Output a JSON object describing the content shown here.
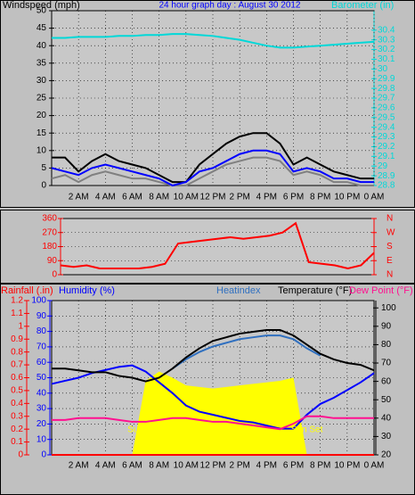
{
  "chart_data": [
    {
      "type": "line",
      "title": "24 hour graph day : August 30 2012",
      "ylabel": "Windspeed (mph)",
      "ycolor": "#000000",
      "y2label": "Barometer (in)",
      "y2color": "#00d8d8",
      "xlim": [
        0,
        24
      ],
      "xticks": [
        {
          "value": 2,
          "label": "2 AM"
        },
        {
          "value": 4,
          "label": "4 AM"
        },
        {
          "value": 6,
          "label": "6 AM"
        },
        {
          "value": 8,
          "label": "8 AM"
        },
        {
          "value": 10,
          "label": "10 AM"
        },
        {
          "value": 12,
          "label": "12 PM"
        },
        {
          "value": 14,
          "label": "2 PM"
        },
        {
          "value": 16,
          "label": "4 PM"
        },
        {
          "value": 18,
          "label": "6 PM"
        },
        {
          "value": 20,
          "label": "8 PM"
        },
        {
          "value": 22,
          "label": "10 PM"
        },
        {
          "value": 24,
          "label": "0 AM"
        }
      ],
      "ylim": [
        0,
        50
      ],
      "yticks": [
        0,
        5,
        10,
        15,
        20,
        25,
        30,
        35,
        40,
        45,
        50
      ],
      "y2lim": [
        28.8,
        30.6
      ],
      "y2ticks": [
        28.8,
        28.9,
        29,
        29.1,
        29.2,
        29.3,
        29.4,
        29.5,
        29.6,
        29.7,
        29.8,
        29.9,
        30,
        30.1,
        30.2,
        30.3,
        30.4
      ],
      "grid": true,
      "x": [
        0,
        1,
        2,
        3,
        4,
        5,
        6,
        7,
        8,
        9,
        10,
        11,
        12,
        13,
        14,
        15,
        16,
        17,
        18,
        19,
        20,
        21,
        22,
        23,
        24
      ],
      "series": [
        {
          "color": "#808080",
          "values": [
            2,
            3,
            1,
            3,
            4,
            3,
            2,
            2,
            1,
            0,
            0,
            2,
            4,
            6,
            7,
            8,
            8,
            7,
            3,
            4,
            3,
            1,
            1,
            0,
            0
          ]
        },
        {
          "color": "#000000",
          "values": [
            8,
            8,
            4,
            7,
            9,
            7,
            6,
            5,
            3,
            1,
            1,
            6,
            9,
            12,
            14,
            15,
            15,
            12,
            6,
            8,
            6,
            4,
            3,
            2,
            2
          ]
        },
        {
          "color": "#0000ff",
          "values": [
            5,
            4,
            3,
            5,
            6,
            5,
            4,
            3,
            2,
            0,
            1,
            4,
            5,
            7,
            9,
            10,
            10,
            9,
            4,
            5,
            4,
            2,
            2,
            1,
            1
          ]
        },
        {
          "color": "#00d8d8",
          "axis": "y2",
          "values": [
            30.32,
            30.32,
            30.33,
            30.33,
            30.33,
            30.34,
            30.34,
            30.35,
            30.35,
            30.36,
            30.36,
            30.35,
            30.34,
            30.32,
            30.3,
            30.27,
            30.24,
            30.22,
            30.22,
            30.23,
            30.24,
            30.25,
            30.26,
            30.27,
            30.28
          ]
        }
      ]
    },
    {
      "type": "line",
      "ycolor": "#ff0000",
      "y2color": "#ff0000",
      "xlim": [
        0,
        24
      ],
      "ylim": [
        0,
        360
      ],
      "yticks": [
        0,
        90,
        180,
        270,
        360
      ],
      "y2lim": [
        0,
        360
      ],
      "y2ticks": [
        {
          "value": 0,
          "label": "N"
        },
        {
          "value": 90,
          "label": "E"
        },
        {
          "value": 180,
          "label": "S"
        },
        {
          "value": 270,
          "label": "W"
        },
        {
          "value": 360,
          "label": "N"
        }
      ],
      "grid": true,
      "x": [
        0,
        1,
        2,
        3,
        4,
        5,
        6,
        7,
        8,
        9,
        10,
        11,
        12,
        13,
        14,
        15,
        16,
        17,
        18,
        19,
        20,
        21,
        22,
        23,
        24
      ],
      "series": [
        {
          "color": "#ff0000",
          "values": [
            60,
            50,
            60,
            40,
            40,
            40,
            40,
            50,
            70,
            200,
            210,
            220,
            230,
            240,
            230,
            240,
            250,
            270,
            330,
            80,
            70,
            60,
            40,
            60,
            140
          ]
        }
      ]
    },
    {
      "type": "line",
      "ylabel": "Humidity (%)",
      "ycolor": "#0000ff",
      "y3label": "Rainfall (.in)",
      "y3color": "#ff0000",
      "y2label": "Temperature (°F)",
      "y2color": "#000000",
      "xlim": [
        0,
        24
      ],
      "xticks": [
        {
          "value": 2,
          "label": "2 AM"
        },
        {
          "value": 4,
          "label": "4 AM"
        },
        {
          "value": 6,
          "label": "6 AM"
        },
        {
          "value": 8,
          "label": "8 AM"
        },
        {
          "value": 10,
          "label": "10 AM"
        },
        {
          "value": 12,
          "label": "12 PM"
        },
        {
          "value": 14,
          "label": "2 PM"
        },
        {
          "value": 16,
          "label": "4 PM"
        },
        {
          "value": 18,
          "label": "6 PM"
        },
        {
          "value": 20,
          "label": "8 PM"
        },
        {
          "value": 22,
          "label": "10 PM"
        },
        {
          "value": 24,
          "label": "0 AM"
        }
      ],
      "ylim": [
        0,
        100
      ],
      "yticks": [
        0,
        10,
        20,
        30,
        40,
        50,
        60,
        70,
        80,
        90,
        100
      ],
      "y3lim": [
        0,
        1.2
      ],
      "y3ticks": [
        0,
        0.1,
        0.2,
        0.3,
        0.4,
        0.5,
        0.6,
        0.7,
        0.8,
        0.9,
        1,
        1.1,
        1.2
      ],
      "y2lim": [
        20,
        104
      ],
      "y2ticks": [
        20,
        30,
        40,
        50,
        60,
        70,
        80,
        90,
        100
      ],
      "grid": true,
      "annotations": [
        {
          "text": "Sun Rise",
          "x": 7
        },
        {
          "text": "Sun Set",
          "x": 19
        }
      ],
      "x": [
        0,
        1,
        2,
        3,
        4,
        5,
        6,
        7,
        8,
        9,
        10,
        11,
        12,
        13,
        14,
        15,
        16,
        17,
        18,
        19,
        20,
        21,
        22,
        23,
        24
      ],
      "series": [
        {
          "color": "#ffff00",
          "style": "area",
          "values": [
            0,
            0,
            0,
            0,
            0,
            0,
            0,
            48,
            54,
            50,
            45,
            44,
            43,
            44,
            45,
            46,
            47,
            48,
            50,
            0,
            0,
            0,
            0,
            0,
            0
          ]
        },
        {
          "color": "#ff0000",
          "axis": "y3",
          "values": [
            0,
            0,
            0,
            0,
            0,
            0,
            0,
            0,
            0,
            0,
            0,
            0,
            0,
            0,
            0,
            0,
            0,
            0,
            0,
            0,
            0,
            0,
            0,
            0,
            0
          ]
        },
        {
          "color": "#0000ff",
          "values": [
            46,
            48,
            50,
            53,
            55,
            57,
            58,
            54,
            47,
            40,
            32,
            28,
            26,
            24,
            22,
            21,
            19,
            17,
            17,
            26,
            33,
            37,
            42,
            47,
            53
          ]
        },
        {
          "name": "Heatindex",
          "color": "#3070c0",
          "axis": "y2",
          "values": [
            null,
            null,
            null,
            null,
            null,
            null,
            null,
            null,
            null,
            67,
            72,
            76,
            79,
            81,
            83,
            84,
            85,
            85,
            83,
            78,
            74,
            null,
            null,
            null,
            null
          ]
        },
        {
          "color": "#000000",
          "axis": "y2",
          "values": [
            67,
            67,
            66,
            65,
            65,
            63,
            62,
            60,
            62,
            67,
            73,
            78,
            82,
            84,
            86,
            87,
            88,
            88,
            85,
            80,
            75,
            72,
            70,
            69,
            66
          ]
        },
        {
          "name": "Dew Point (°F)",
          "color": "#ff1090",
          "axis": "y2",
          "values": [
            39,
            39,
            40,
            40,
            40,
            39,
            38,
            38,
            39,
            40,
            40,
            39,
            38,
            38,
            37,
            36,
            35,
            34,
            37,
            41,
            41,
            40,
            40,
            40,
            40
          ]
        }
      ]
    }
  ]
}
